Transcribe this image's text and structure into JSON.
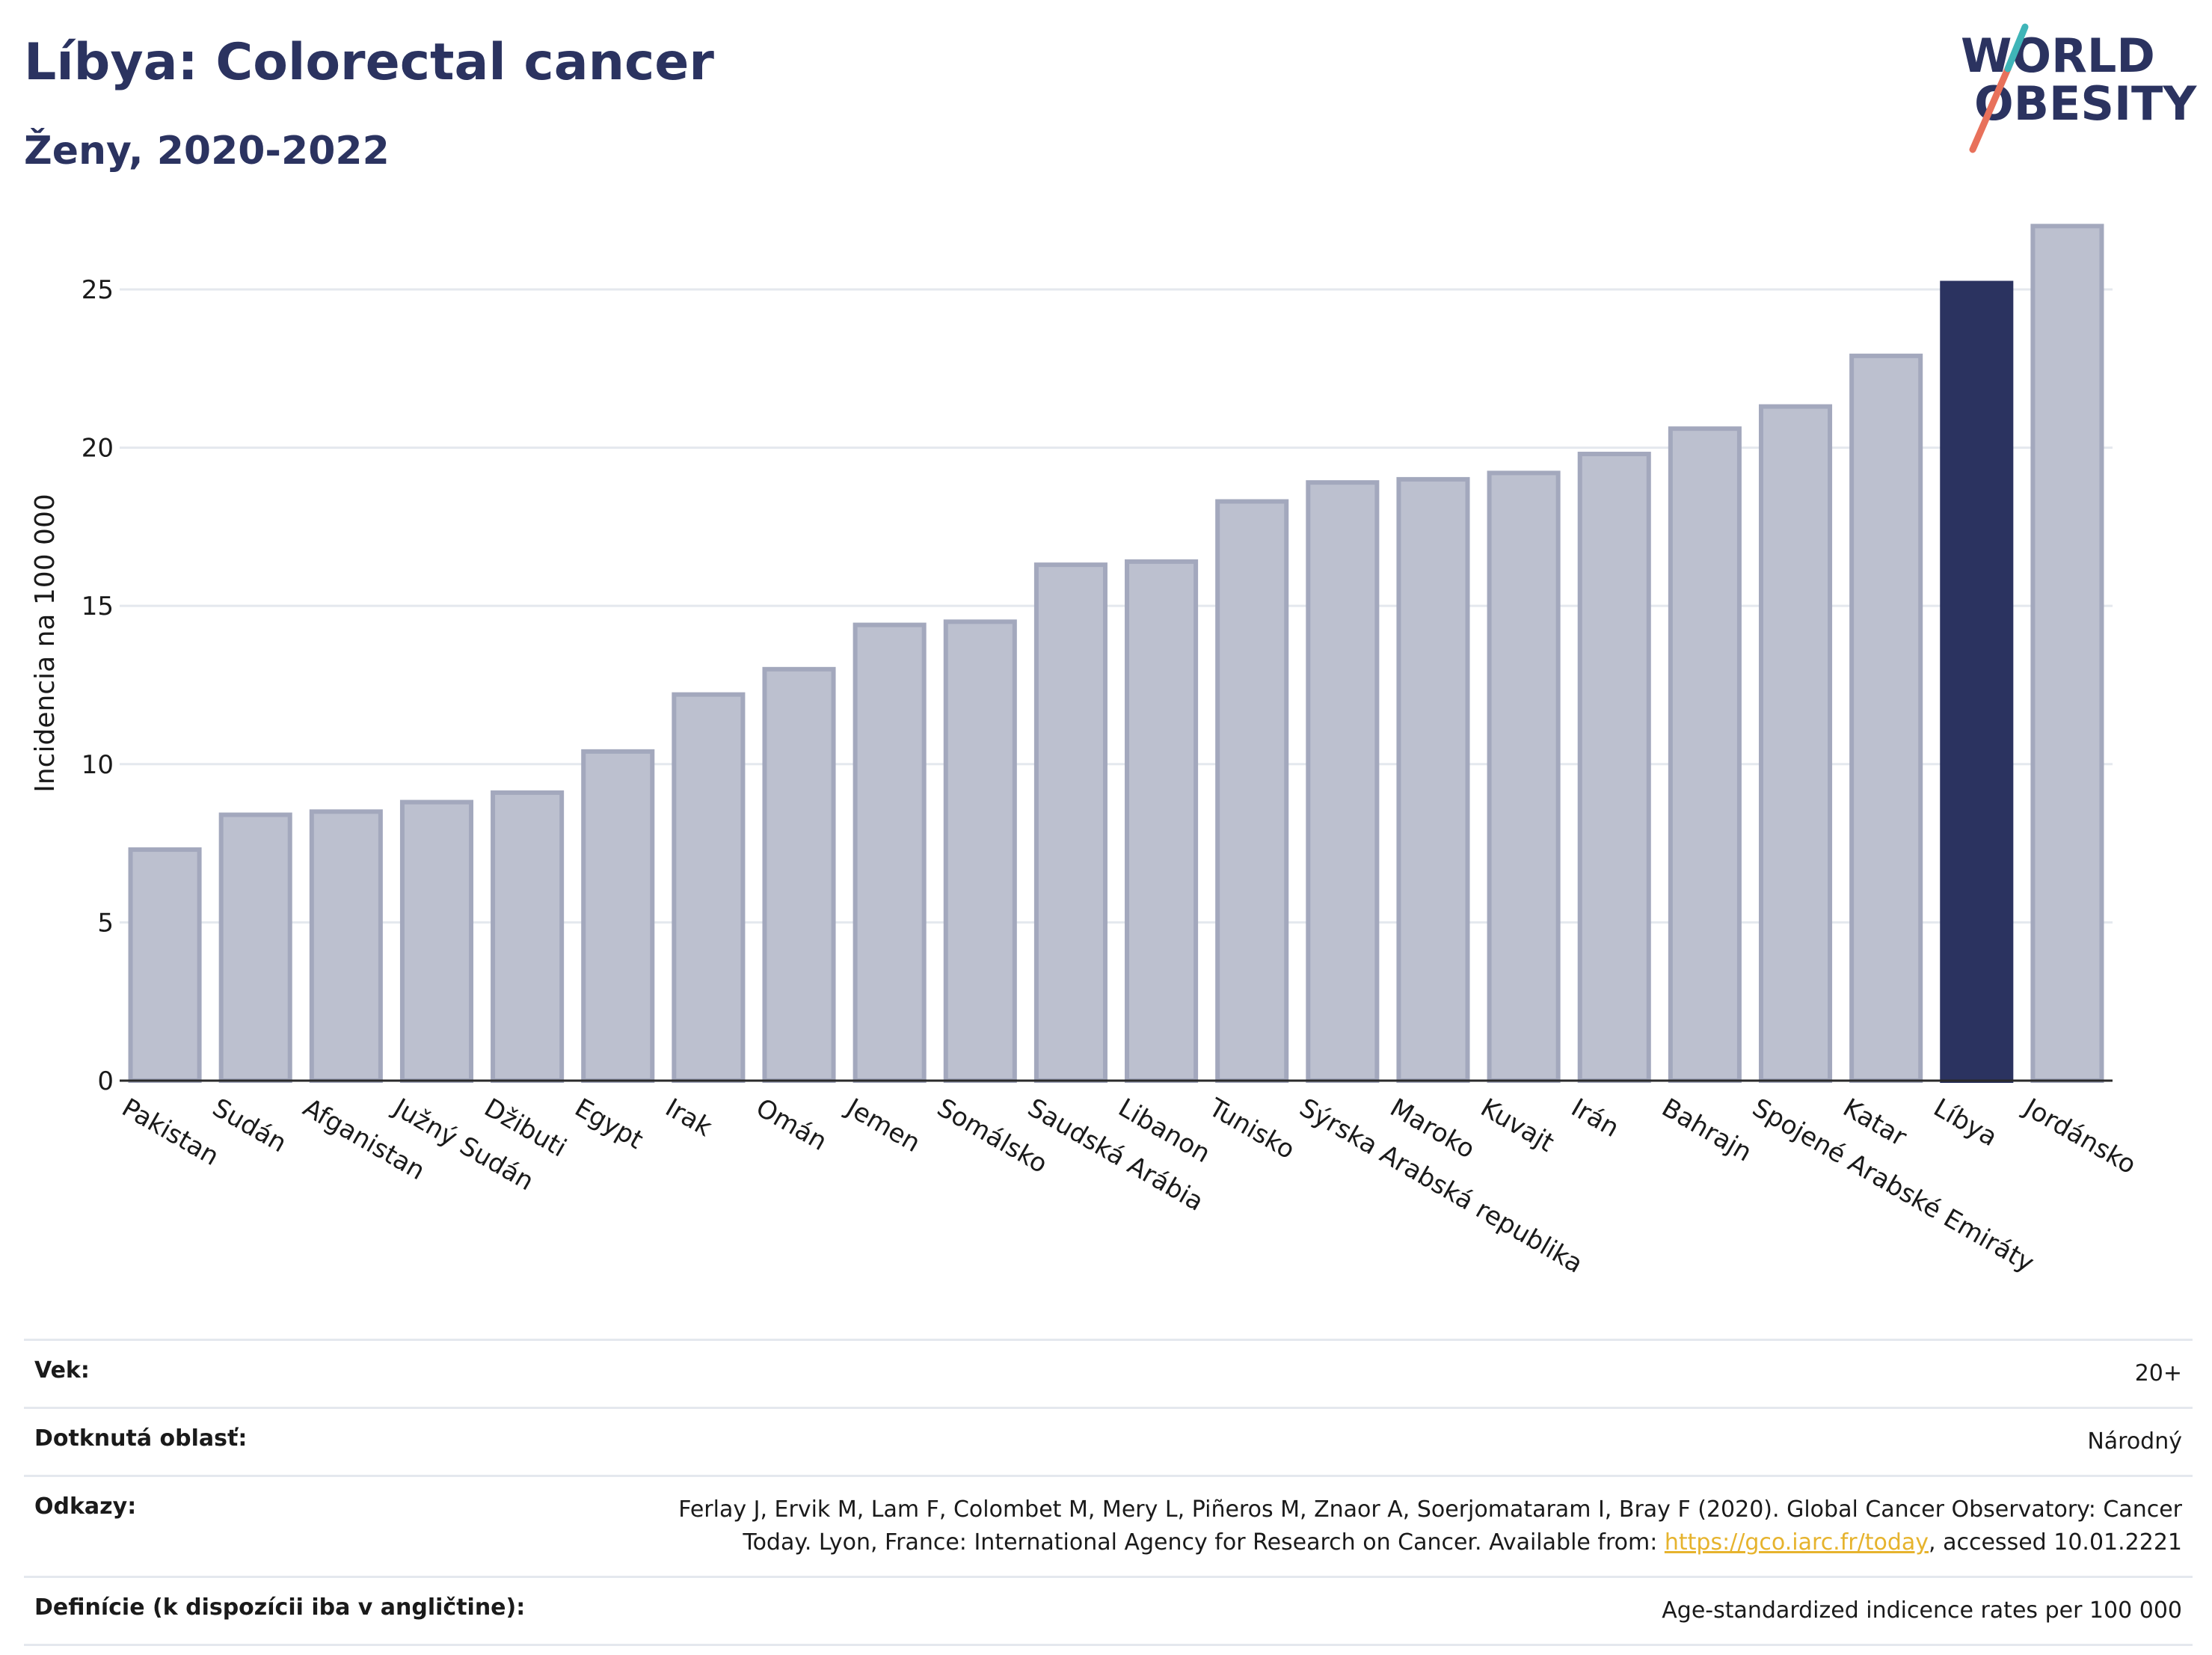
{
  "header": {
    "title": "Líbya: Colorectal cancer",
    "subtitle": "Ženy, 2020-2022"
  },
  "logo": {
    "line1": "WORLD",
    "line2": "OBESITY",
    "colors": [
      "#2b3360",
      "#e8715b",
      "#3fb5b8"
    ]
  },
  "chart_data": {
    "type": "bar",
    "title": "",
    "xlabel": "",
    "ylabel": "Incidencia na 100 000",
    "ylim": [
      0,
      28
    ],
    "yticks": [
      0,
      5,
      10,
      15,
      20,
      25
    ],
    "grid": true,
    "categories": [
      "Pakistan",
      "Sudán",
      "Afganistan",
      "Južný Sudán",
      "Džibuti",
      "Egypt",
      "Irak",
      "Omán",
      "Jemen",
      "Somálsko",
      "Saudská Arábia",
      "Libanon",
      "Tunisko",
      "Sýrska Arabská republika",
      "Maroko",
      "Kuvajt",
      "Irán",
      "Bahrajn",
      "Spojené Arabské Emiráty",
      "Katar",
      "Líbya",
      "Jordánsko"
    ],
    "values": [
      7.3,
      8.4,
      8.5,
      8.8,
      9.1,
      10.4,
      12.2,
      13.0,
      14.4,
      14.5,
      16.3,
      16.4,
      18.3,
      18.9,
      19.0,
      19.2,
      19.8,
      20.6,
      21.3,
      22.9,
      25.2,
      27.0
    ],
    "highlight": "Líbya",
    "colors": {
      "default": "#bcc0cf",
      "default_edge": "#a3a8bd",
      "highlight": "#2b3360"
    }
  },
  "info": {
    "rows": [
      {
        "key": "Vek:",
        "value": "20+"
      },
      {
        "key": "Dotknutá oblasť:",
        "value": "Národný"
      },
      {
        "key": "Odkazy:",
        "value_line1": "Ferlay J, Ervik M, Lam F, Colombet M, Mery L, Piñeros M, Znaor A, Soerjomataram I, Bray F (2020). Global Cancer Observatory: Cancer",
        "value_line2_pre": "Today. Lyon, France: International Agency for Research on Cancer. Available from: ",
        "link": "https://gco.iarc.fr/today",
        "value_line2_post": ", accessed 10.01.2221"
      },
      {
        "key": "Definície (k dispozícii iba v angličtine):",
        "value": "Age-standardized indicence rates per 100 000"
      }
    ]
  }
}
